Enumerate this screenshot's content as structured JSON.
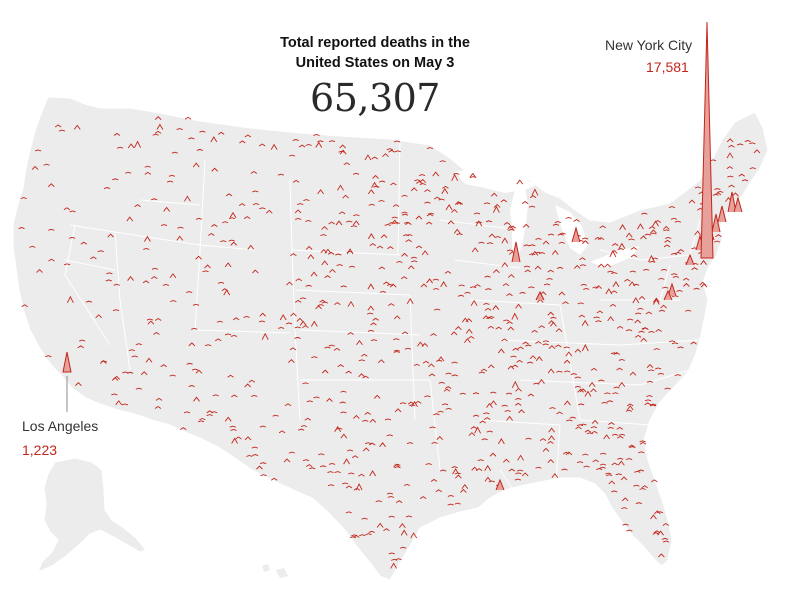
{
  "headline": {
    "title_line1": "Total reported deaths in the",
    "title_line2": "United States on May 3",
    "total": "65,307"
  },
  "callouts": [
    {
      "id": "nyc",
      "name": "New York City",
      "value": "17,581"
    },
    {
      "id": "la",
      "name": "Los Angeles",
      "value": "1,223"
    }
  ],
  "colors": {
    "land": "#ececec",
    "borders": "#ffffff",
    "spike": "#c3261b",
    "spike_fill": "#e7a09a",
    "leader": "#8c8c8c"
  },
  "spikes_shown_for": "county deaths (red markers)"
}
